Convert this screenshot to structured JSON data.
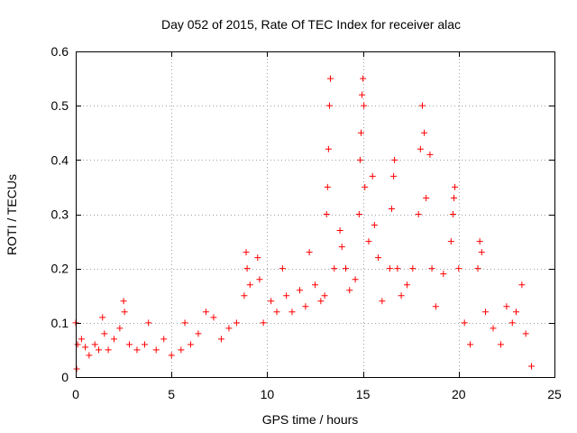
{
  "chart_data": {
    "type": "scatter",
    "title": "Day 052 of 2015, Rate Of TEC Index for receiver alac",
    "xlabel": "GPS time / hours",
    "ylabel": "ROTI / TECUs",
    "xlim": [
      0,
      25
    ],
    "ylim": [
      0,
      0.6
    ],
    "xticks": [
      0,
      5,
      10,
      15,
      20,
      25
    ],
    "xtick_labels": [
      "0",
      "5",
      "10",
      "15",
      "20",
      "25"
    ],
    "yticks": [
      0,
      0.1,
      0.2,
      0.3,
      0.4,
      0.5,
      0.6
    ],
    "ytick_labels": [
      "0",
      "0.1",
      "0.2",
      "0.3",
      "0.4",
      "0.5",
      "0.6"
    ],
    "grid": true,
    "marker": "+",
    "color": "#ff0000",
    "series": [
      {
        "name": "ROTI",
        "points": [
          [
            0.0,
            0.1
          ],
          [
            0.05,
            0.015
          ],
          [
            0.1,
            0.06
          ],
          [
            0.3,
            0.07
          ],
          [
            0.5,
            0.055
          ],
          [
            0.7,
            0.04
          ],
          [
            1.0,
            0.06
          ],
          [
            1.2,
            0.05
          ],
          [
            1.4,
            0.11
          ],
          [
            1.5,
            0.08
          ],
          [
            1.7,
            0.05
          ],
          [
            2.0,
            0.07
          ],
          [
            2.3,
            0.09
          ],
          [
            2.5,
            0.14
          ],
          [
            2.55,
            0.12
          ],
          [
            2.8,
            0.06
          ],
          [
            3.2,
            0.05
          ],
          [
            3.6,
            0.06
          ],
          [
            3.8,
            0.1
          ],
          [
            4.2,
            0.05
          ],
          [
            4.6,
            0.07
          ],
          [
            5.0,
            0.04
          ],
          [
            5.5,
            0.05
          ],
          [
            5.7,
            0.1
          ],
          [
            6.0,
            0.06
          ],
          [
            6.4,
            0.08
          ],
          [
            6.8,
            0.12
          ],
          [
            7.2,
            0.11
          ],
          [
            7.6,
            0.07
          ],
          [
            8.0,
            0.09
          ],
          [
            8.4,
            0.1
          ],
          [
            8.8,
            0.15
          ],
          [
            8.9,
            0.23
          ],
          [
            8.95,
            0.2
          ],
          [
            9.1,
            0.17
          ],
          [
            9.5,
            0.22
          ],
          [
            9.6,
            0.18
          ],
          [
            9.8,
            0.1
          ],
          [
            10.2,
            0.14
          ],
          [
            10.5,
            0.12
          ],
          [
            10.8,
            0.2
          ],
          [
            11.0,
            0.15
          ],
          [
            11.3,
            0.12
          ],
          [
            11.7,
            0.16
          ],
          [
            12.0,
            0.13
          ],
          [
            12.2,
            0.23
          ],
          [
            12.5,
            0.17
          ],
          [
            12.8,
            0.14
          ],
          [
            13.0,
            0.15
          ],
          [
            13.1,
            0.3
          ],
          [
            13.15,
            0.35
          ],
          [
            13.2,
            0.42
          ],
          [
            13.25,
            0.5
          ],
          [
            13.3,
            0.55
          ],
          [
            13.5,
            0.2
          ],
          [
            13.8,
            0.27
          ],
          [
            13.9,
            0.24
          ],
          [
            14.1,
            0.2
          ],
          [
            14.3,
            0.16
          ],
          [
            14.6,
            0.18
          ],
          [
            14.8,
            0.3
          ],
          [
            14.85,
            0.4
          ],
          [
            14.9,
            0.45
          ],
          [
            14.95,
            0.52
          ],
          [
            15.0,
            0.55
          ],
          [
            15.05,
            0.5
          ],
          [
            15.1,
            0.35
          ],
          [
            15.3,
            0.25
          ],
          [
            15.5,
            0.37
          ],
          [
            15.6,
            0.28
          ],
          [
            15.8,
            0.22
          ],
          [
            16.0,
            0.14
          ],
          [
            16.4,
            0.2
          ],
          [
            16.5,
            0.31
          ],
          [
            16.6,
            0.37
          ],
          [
            16.65,
            0.4
          ],
          [
            16.8,
            0.2
          ],
          [
            17.0,
            0.15
          ],
          [
            17.3,
            0.17
          ],
          [
            17.6,
            0.2
          ],
          [
            17.9,
            0.3
          ],
          [
            18.0,
            0.42
          ],
          [
            18.1,
            0.5
          ],
          [
            18.2,
            0.45
          ],
          [
            18.3,
            0.33
          ],
          [
            18.5,
            0.41
          ],
          [
            18.6,
            0.2
          ],
          [
            18.8,
            0.13
          ],
          [
            19.2,
            0.19
          ],
          [
            19.6,
            0.25
          ],
          [
            19.7,
            0.3
          ],
          [
            19.75,
            0.33
          ],
          [
            19.8,
            0.35
          ],
          [
            20.0,
            0.2
          ],
          [
            20.3,
            0.1
          ],
          [
            20.6,
            0.06
          ],
          [
            21.0,
            0.2
          ],
          [
            21.1,
            0.25
          ],
          [
            21.2,
            0.23
          ],
          [
            21.4,
            0.12
          ],
          [
            21.8,
            0.09
          ],
          [
            22.2,
            0.06
          ],
          [
            22.5,
            0.13
          ],
          [
            22.8,
            0.1
          ],
          [
            23.0,
            0.12
          ],
          [
            23.3,
            0.17
          ],
          [
            23.5,
            0.08
          ],
          [
            23.8,
            0.02
          ]
        ]
      }
    ]
  }
}
